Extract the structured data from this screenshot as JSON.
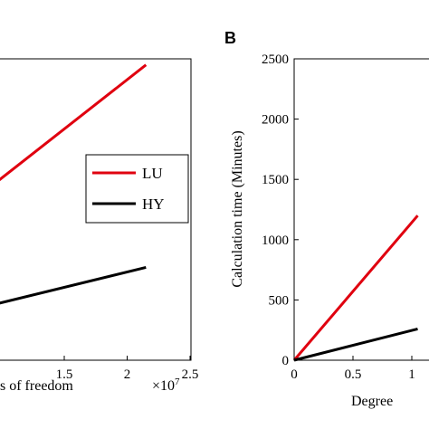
{
  "chart_data": [
    {
      "type": "line",
      "panel": "A",
      "panel_label": "",
      "xlabel": "Degrees of freedom",
      "xlabel_visible": "s of freedom",
      "ylabel": "",
      "x_multiplier": "×10",
      "x_multiplier_exp": "7",
      "xlim": [
        0.5,
        2.5
      ],
      "ylim": [
        0,
        2500
      ],
      "x_ticks": [
        1.5,
        2,
        2.5
      ],
      "x_tick_labels": [
        "1.5",
        "2",
        "2.5"
      ],
      "legend": {
        "placement": "right",
        "entries": [
          "LU",
          "HY"
        ]
      },
      "series": [
        {
          "name": "LU",
          "color": "#e0000f",
          "x": [
            0.5,
            2.15
          ],
          "y": [
            1100,
            2450
          ]
        },
        {
          "name": "HY",
          "color": "#000000",
          "x": [
            0.5,
            2.15
          ],
          "y": [
            350,
            770
          ]
        }
      ]
    },
    {
      "type": "line",
      "panel": "B",
      "panel_label": "B",
      "xlabel": "Degree",
      "ylabel": "Calculation time (Minutes)",
      "xlim": [
        0,
        2.5
      ],
      "ylim": [
        0,
        2500
      ],
      "x_ticks": [
        0,
        0.5,
        1
      ],
      "x_tick_labels": [
        "0",
        "0.5",
        "1"
      ],
      "y_ticks": [
        0,
        500,
        1000,
        1500,
        2000,
        2500
      ],
      "y_tick_labels": [
        "0",
        "500",
        "1000",
        "1500",
        "2000",
        "2500"
      ],
      "series": [
        {
          "name": "LU",
          "color": "#e0000f",
          "x": [
            0,
            1.05
          ],
          "y": [
            0,
            1200
          ]
        },
        {
          "name": "HY",
          "color": "#000000",
          "x": [
            0,
            1.05
          ],
          "y": [
            0,
            260
          ]
        }
      ]
    }
  ]
}
